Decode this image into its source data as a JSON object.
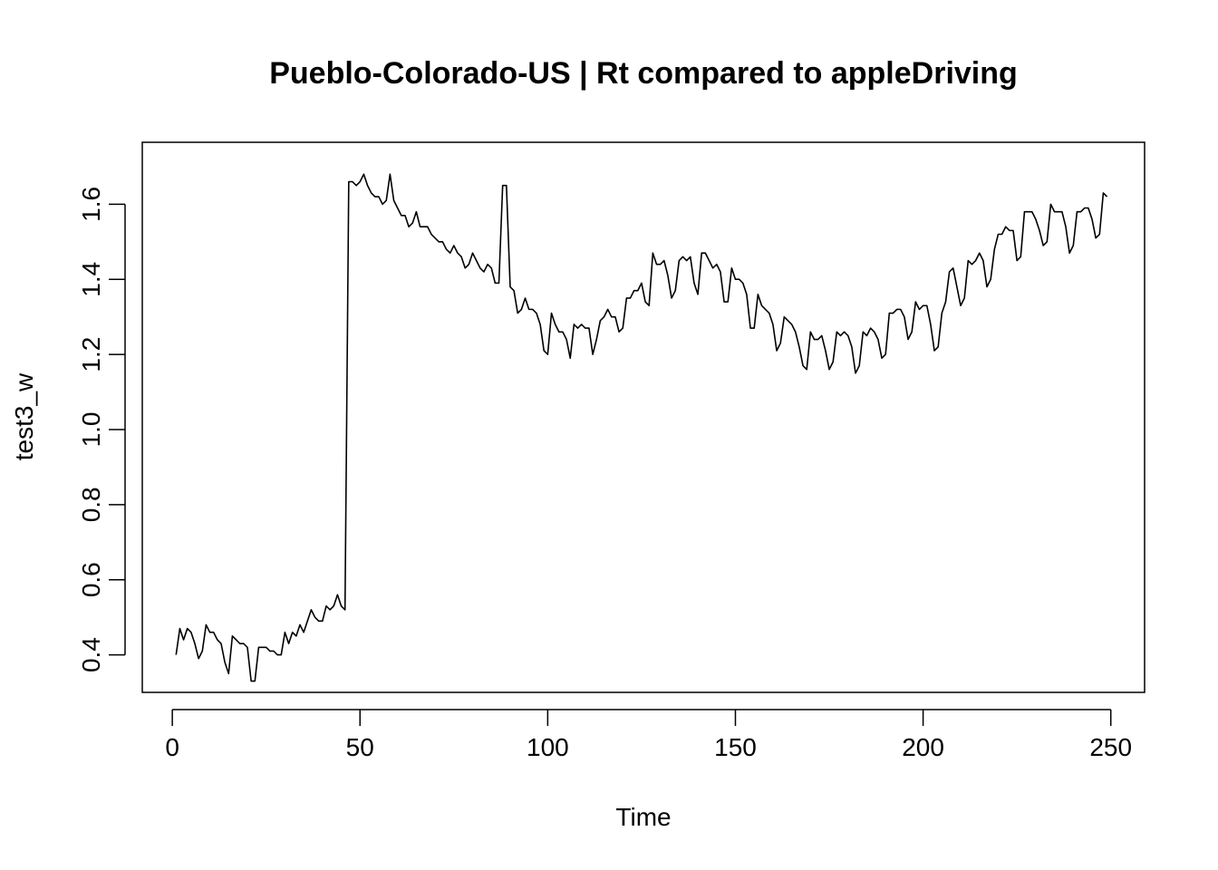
{
  "chart_data": {
    "type": "line",
    "title": "Pueblo-Colorado-US | Rt compared to appleDriving",
    "xlabel": "Time",
    "ylabel": "test3_w",
    "xlim": [
      -8,
      259
    ],
    "ylim": [
      0.3,
      1.765
    ],
    "xticks": [
      0,
      50,
      100,
      150,
      200,
      250
    ],
    "yticks": [
      0.4,
      0.6,
      0.8,
      1.0,
      1.2,
      1.4,
      1.6
    ],
    "ytick_labels": [
      "0.4",
      "0.6",
      "0.8",
      "1.0",
      "1.2",
      "1.4",
      "1.6"
    ],
    "grid": false,
    "line_color": "#000000",
    "series": [
      {
        "x_start": 1,
        "values": [
          0.4,
          0.47,
          0.44,
          0.47,
          0.46,
          0.43,
          0.39,
          0.41,
          0.48,
          0.46,
          0.46,
          0.44,
          0.43,
          0.38,
          0.35,
          0.45,
          0.44,
          0.43,
          0.43,
          0.42,
          0.33,
          0.33,
          0.42,
          0.42,
          0.42,
          0.41,
          0.41,
          0.4,
          0.4,
          0.46,
          0.43,
          0.46,
          0.45,
          0.48,
          0.46,
          0.49,
          0.52,
          0.5,
          0.49,
          0.49,
          0.53,
          0.52,
          0.53,
          0.56,
          0.53,
          0.52,
          1.66,
          1.66,
          1.65,
          1.66,
          1.68,
          1.65,
          1.63,
          1.62,
          1.62,
          1.6,
          1.61,
          1.68,
          1.61,
          1.59,
          1.57,
          1.57,
          1.54,
          1.55,
          1.58,
          1.54,
          1.54,
          1.54,
          1.52,
          1.51,
          1.5,
          1.5,
          1.48,
          1.47,
          1.49,
          1.47,
          1.46,
          1.43,
          1.44,
          1.47,
          1.45,
          1.43,
          1.42,
          1.44,
          1.43,
          1.39,
          1.39,
          1.65,
          1.65,
          1.38,
          1.37,
          1.31,
          1.32,
          1.35,
          1.32,
          1.32,
          1.31,
          1.28,
          1.21,
          1.2,
          1.31,
          1.28,
          1.26,
          1.26,
          1.24,
          1.19,
          1.28,
          1.27,
          1.28,
          1.27,
          1.27,
          1.2,
          1.24,
          1.29,
          1.3,
          1.32,
          1.3,
          1.3,
          1.26,
          1.27,
          1.35,
          1.35,
          1.37,
          1.37,
          1.39,
          1.34,
          1.33,
          1.47,
          1.44,
          1.44,
          1.45,
          1.41,
          1.35,
          1.37,
          1.45,
          1.46,
          1.45,
          1.46,
          1.39,
          1.36,
          1.47,
          1.47,
          1.45,
          1.43,
          1.44,
          1.42,
          1.34,
          1.34,
          1.43,
          1.4,
          1.4,
          1.39,
          1.36,
          1.27,
          1.27,
          1.36,
          1.33,
          1.32,
          1.31,
          1.28,
          1.21,
          1.23,
          1.3,
          1.29,
          1.28,
          1.26,
          1.22,
          1.17,
          1.16,
          1.26,
          1.24,
          1.24,
          1.25,
          1.21,
          1.16,
          1.18,
          1.26,
          1.25,
          1.26,
          1.25,
          1.22,
          1.15,
          1.17,
          1.26,
          1.25,
          1.27,
          1.26,
          1.24,
          1.19,
          1.2,
          1.31,
          1.31,
          1.32,
          1.32,
          1.3,
          1.24,
          1.26,
          1.34,
          1.32,
          1.33,
          1.33,
          1.28,
          1.21,
          1.22,
          1.31,
          1.34,
          1.42,
          1.43,
          1.38,
          1.33,
          1.35,
          1.45,
          1.44,
          1.45,
          1.47,
          1.45,
          1.38,
          1.4,
          1.48,
          1.52,
          1.52,
          1.54,
          1.53,
          1.53,
          1.45,
          1.46,
          1.58,
          1.58,
          1.58,
          1.56,
          1.53,
          1.49,
          1.5,
          1.6,
          1.58,
          1.58,
          1.58,
          1.54,
          1.47,
          1.49,
          1.58,
          1.58,
          1.59,
          1.59,
          1.56,
          1.51,
          1.52,
          1.63,
          1.62
        ]
      }
    ]
  }
}
